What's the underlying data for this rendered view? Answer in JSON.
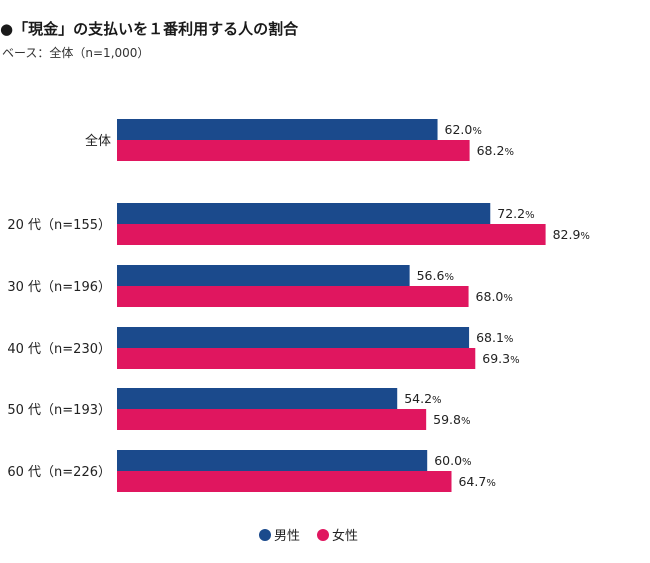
{
  "chart_data": {
    "type": "bar",
    "orientation": "horizontal",
    "title": "●「現金」の支払いを１番利用する人の割合",
    "subtitle": "ベース：全体（n=1,000）",
    "categories": [
      "全体",
      "20 代（n=155）",
      "30 代（n=196）",
      "40 代（n=230）",
      "50 代（n=193）",
      "60 代（n=226）"
    ],
    "series": [
      {
        "name": "男性",
        "color": "#1b4a8c",
        "values": [
          62.0,
          72.2,
          56.6,
          68.1,
          54.2,
          60.0
        ]
      },
      {
        "name": "女性",
        "color": "#e0165f",
        "values": [
          68.2,
          82.9,
          68.0,
          69.3,
          59.8,
          64.7
        ]
      }
    ],
    "value_suffix": "%",
    "xlim": [
      0,
      100
    ],
    "grid": false,
    "legend": "bottom-center"
  }
}
